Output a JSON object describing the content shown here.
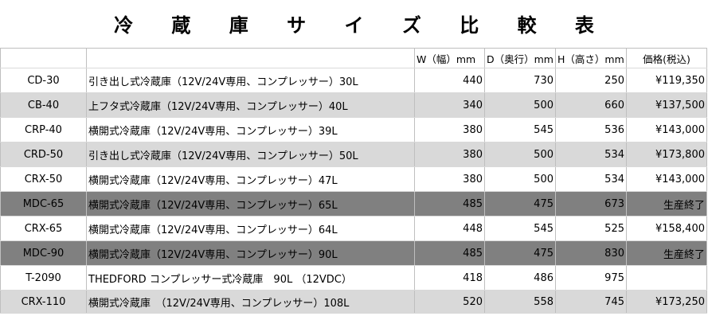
{
  "title": "冷 蔵 庫 サ イ ズ 比 較 表",
  "headers": {
    "model": "",
    "description": "",
    "width": "W（幅）mm",
    "depth": "D（奥行）mm",
    "height": "H（高さ）mm",
    "price": "価格(税込)"
  },
  "rows": [
    {
      "model": "CD-30",
      "description": "引き出し式冷蔵庫（12V/24V専用、コンプレッサー）30L",
      "width": "440",
      "depth": "730",
      "height": "250",
      "price": "¥119,350",
      "shade": "none"
    },
    {
      "model": "CB-40",
      "description": "上フタ式冷蔵庫（12V/24V専用、コンプレッサー）40L",
      "width": "340",
      "depth": "500",
      "height": "660",
      "price": "¥137,500",
      "shade": "light"
    },
    {
      "model": "CRP-40",
      "description": "横開式冷蔵庫（12V/24V専用、コンプレッサー）39L",
      "width": "380",
      "depth": "545",
      "height": "536",
      "price": "¥143,000",
      "shade": "none"
    },
    {
      "model": "CRD-50",
      "description": "引き出し式冷蔵庫（12V/24V専用、コンプレッサー）50L",
      "width": "380",
      "depth": "500",
      "height": "534",
      "price": "¥173,800",
      "shade": "light"
    },
    {
      "model": "CRX-50",
      "description": "横開式冷蔵庫（12V/24V専用、コンプレッサー）47L",
      "width": "380",
      "depth": "500",
      "height": "534",
      "price": "¥143,000",
      "shade": "none"
    },
    {
      "model": "MDC-65",
      "description": "横開式冷蔵庫（12V/24V専用、コンプレッサー）65L",
      "width": "485",
      "depth": "475",
      "height": "673",
      "price": "生産終了",
      "shade": "dark"
    },
    {
      "model": "CRX-65",
      "description": "横開式冷蔵庫（12V/24V専用、コンプレッサー）64L",
      "width": "448",
      "depth": "545",
      "height": "525",
      "price": "¥158,400",
      "shade": "none"
    },
    {
      "model": "MDC-90",
      "description": "横開式冷蔵庫（12V/24V専用、コンプレッサー）90L",
      "width": "485",
      "depth": "475",
      "height": "830",
      "price": "生産終了",
      "shade": "dark"
    },
    {
      "model": "T-2090",
      "description": "THEDFORD コンプレッサー式冷蔵庫　90L （12VDC）",
      "width": "418",
      "depth": "486",
      "height": "975",
      "price": "",
      "shade": "none"
    },
    {
      "model": "CRX-110",
      "description": "横開式冷蔵庫　（12V/24V専用、コンプレッサー）108L",
      "width": "520",
      "depth": "558",
      "height": "745",
      "price": "¥173,250",
      "shade": "light"
    }
  ]
}
